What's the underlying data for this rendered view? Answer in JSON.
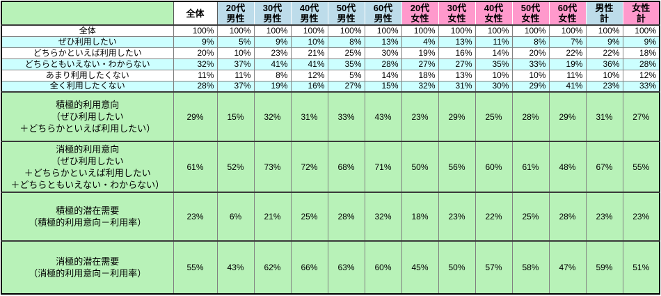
{
  "colors": {
    "green": "#B8F2B8",
    "blue": "#BDDCEA",
    "pink": "#FF99CC",
    "cyan": "#CCFFFF",
    "grid": "#808080",
    "outer_border": "#000000"
  },
  "chart_data": {
    "type": "table",
    "title": "",
    "corner_label": "",
    "columns": [
      {
        "label": "全体",
        "group": "total"
      },
      {
        "label": "20代\n男性",
        "group": "male"
      },
      {
        "label": "30代\n男性",
        "group": "male"
      },
      {
        "label": "40代\n男性",
        "group": "male"
      },
      {
        "label": "50代\n男性",
        "group": "male"
      },
      {
        "label": "60代\n男性",
        "group": "male"
      },
      {
        "label": "20代\n女性",
        "group": "female"
      },
      {
        "label": "30代\n女性",
        "group": "female"
      },
      {
        "label": "40代\n女性",
        "group": "female"
      },
      {
        "label": "50代\n女性",
        "group": "female"
      },
      {
        "label": "60代\n女性",
        "group": "female"
      },
      {
        "label": "男性\n計",
        "group": "male"
      },
      {
        "label": "女性\n計",
        "group": "female"
      }
    ],
    "rows": [
      {
        "label": "全体",
        "band": "white",
        "values": [
          "100%",
          "100%",
          "100%",
          "100%",
          "100%",
          "100%",
          "100%",
          "100%",
          "100%",
          "100%",
          "100%",
          "100%",
          "100%"
        ]
      },
      {
        "label": "ぜひ利用したい",
        "band": "cyan",
        "values": [
          "9%",
          "5%",
          "9%",
          "10%",
          "8%",
          "13%",
          "4%",
          "13%",
          "11%",
          "8%",
          "7%",
          "9%",
          "9%"
        ]
      },
      {
        "label": "どちらかといえば利用したい",
        "band": "white",
        "values": [
          "20%",
          "10%",
          "23%",
          "21%",
          "25%",
          "30%",
          "19%",
          "16%",
          "14%",
          "20%",
          "22%",
          "22%",
          "18%"
        ]
      },
      {
        "label": "どちらともいえない・わからない",
        "band": "cyan",
        "values": [
          "32%",
          "37%",
          "41%",
          "41%",
          "35%",
          "28%",
          "27%",
          "27%",
          "35%",
          "33%",
          "19%",
          "36%",
          "28%"
        ]
      },
      {
        "label": "あまり利用したくない",
        "band": "white",
        "values": [
          "11%",
          "11%",
          "8%",
          "12%",
          "5%",
          "14%",
          "18%",
          "13%",
          "10%",
          "10%",
          "11%",
          "10%",
          "12%"
        ]
      },
      {
        "label": "全く利用したくない",
        "band": "cyan",
        "values": [
          "28%",
          "37%",
          "19%",
          "16%",
          "27%",
          "15%",
          "32%",
          "31%",
          "30%",
          "29%",
          "41%",
          "23%",
          "33%"
        ]
      }
    ],
    "summary_rows": [
      {
        "label": "積極的利用意向\n（ぜひ利用したい\n＋どちらかといえば利用したい）",
        "values": [
          "29%",
          "15%",
          "32%",
          "31%",
          "33%",
          "43%",
          "23%",
          "29%",
          "25%",
          "28%",
          "29%",
          "31%",
          "27%"
        ]
      },
      {
        "label": "消極的利用意向\n（ぜひ利用したい\n＋どちらかといえば利用したい\n＋どちらともいえない・わからない）",
        "values": [
          "61%",
          "52%",
          "73%",
          "72%",
          "68%",
          "71%",
          "50%",
          "56%",
          "60%",
          "61%",
          "48%",
          "67%",
          "55%"
        ]
      },
      {
        "label": "積極的潜在需要\n（積極的利用意向－利用率）",
        "values": [
          "23%",
          "6%",
          "21%",
          "25%",
          "28%",
          "32%",
          "18%",
          "23%",
          "22%",
          "25%",
          "28%",
          "23%",
          "23%"
        ]
      },
      {
        "label": "消極的潜在需要\n（消極的利用意向－利用率）",
        "values": [
          "55%",
          "43%",
          "62%",
          "66%",
          "63%",
          "60%",
          "45%",
          "50%",
          "57%",
          "58%",
          "47%",
          "59%",
          "51%"
        ]
      }
    ]
  }
}
